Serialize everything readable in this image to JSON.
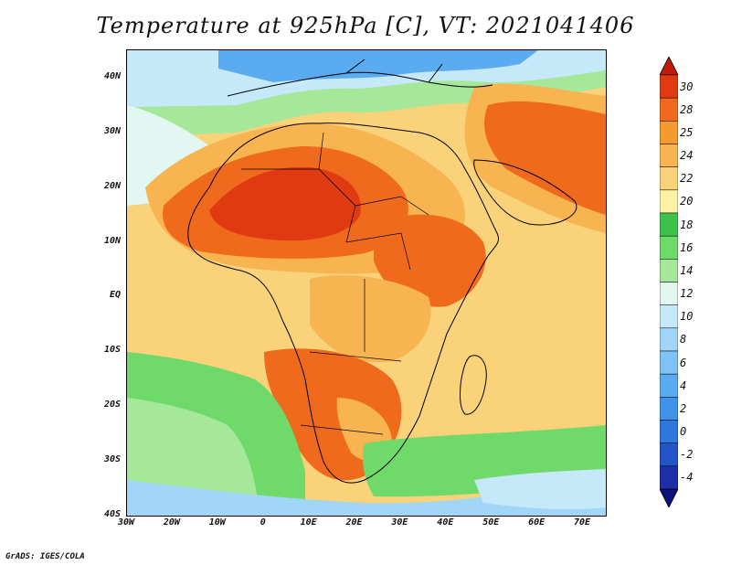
{
  "title": "Temperature at 925hPa [C], VT: 2021041406",
  "credit": "GrADS: IGES/COLA",
  "map": {
    "lat_labels": [
      {
        "label": "40N",
        "lat": 40
      },
      {
        "label": "30N",
        "lat": 30
      },
      {
        "label": "20N",
        "lat": 20
      },
      {
        "label": "10N",
        "lat": 10
      },
      {
        "label": "EQ",
        "lat": 0
      },
      {
        "label": "10S",
        "lat": -10
      },
      {
        "label": "20S",
        "lat": -20
      },
      {
        "label": "30S",
        "lat": -30
      },
      {
        "label": "40S",
        "lat": -40
      }
    ],
    "lon_labels": [
      {
        "label": "30W",
        "lon": -30
      },
      {
        "label": "20W",
        "lon": -20
      },
      {
        "label": "10W",
        "lon": -10
      },
      {
        "label": "0",
        "lon": 0
      },
      {
        "label": "10E",
        "lon": 10
      },
      {
        "label": "20E",
        "lon": 20
      },
      {
        "label": "30E",
        "lon": 30
      },
      {
        "label": "40E",
        "lon": 40
      },
      {
        "label": "50E",
        "lon": 50
      },
      {
        "label": "60E",
        "lon": 60
      },
      {
        "label": "70E",
        "lon": 70
      }
    ],
    "lat_range": [
      -40,
      45
    ],
    "lon_range": [
      -30,
      75
    ]
  },
  "colorbar": {
    "min_color": "#10107a",
    "max_color": "#c01a0c",
    "levels": [
      {
        "label": "-4",
        "color": "#1e2fa8"
      },
      {
        "label": "-2",
        "color": "#2354c8"
      },
      {
        "label": "0",
        "color": "#2e77dd"
      },
      {
        "label": "2",
        "color": "#3f93e8"
      },
      {
        "label": "4",
        "color": "#5aabf0"
      },
      {
        "label": "6",
        "color": "#7fc2f5"
      },
      {
        "label": "8",
        "color": "#a2d6f8"
      },
      {
        "label": "10",
        "color": "#c6e9fa"
      },
      {
        "label": "12",
        "color": "#e3f7f2"
      },
      {
        "label": "14",
        "color": "#a6e89a"
      },
      {
        "label": "16",
        "color": "#6fd96a"
      },
      {
        "label": "18",
        "color": "#3dc24b"
      },
      {
        "label": "20",
        "color": "#fbf2a6"
      },
      {
        "label": "22",
        "color": "#f9d27a"
      },
      {
        "label": "24",
        "color": "#f7b450"
      },
      {
        "label": "25",
        "color": "#f59a2e"
      },
      {
        "label": "28",
        "color": "#f06a1e"
      },
      {
        "label": "30",
        "color": "#e03a12"
      }
    ],
    "label_order_top_to_bottom": [
      "30",
      "28",
      "25",
      "24",
      "22",
      "20",
      "18",
      "16",
      "14",
      "12",
      "10",
      "8",
      "6",
      "4",
      "2",
      "0",
      "-2",
      "-4"
    ]
  }
}
